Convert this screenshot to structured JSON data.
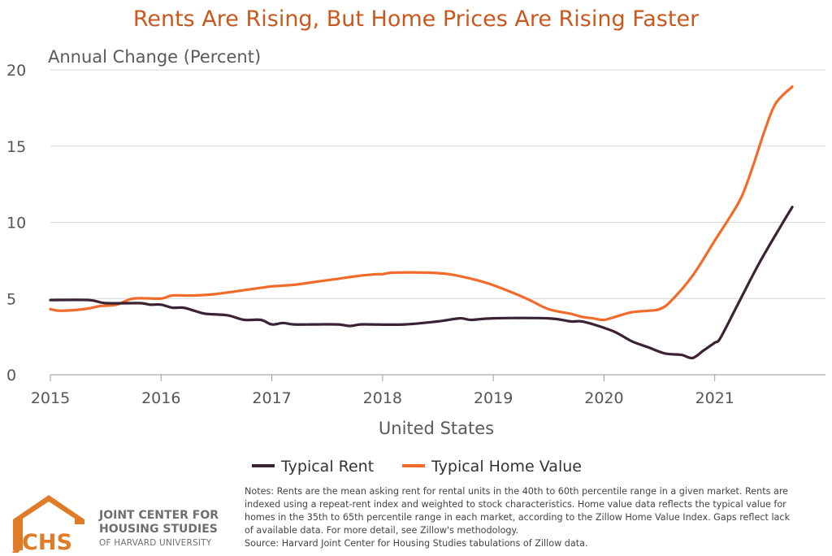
{
  "chart_data": {
    "type": "line",
    "title": "Rents Are Rising, But Home Prices Are Rising Faster",
    "ylabel": "Annual Change (Percent)",
    "xlabel": "United States",
    "ylim": [
      0,
      20
    ],
    "yticks": [
      "0",
      "5",
      "10",
      "15",
      "20"
    ],
    "xlim": [
      2015,
      2022
    ],
    "xticks": [
      "2015",
      "2016",
      "2017",
      "2018",
      "2019",
      "2020",
      "2021"
    ],
    "legend_position": "bottom",
    "series": [
      {
        "name": "Typical Rent",
        "color": "#3b2335",
        "x": [
          2015.0,
          2015.35,
          2015.5,
          2015.8,
          2015.9,
          2016.0,
          2016.1,
          2016.2,
          2016.3,
          2016.4,
          2016.6,
          2016.75,
          2016.9,
          2017.0,
          2017.1,
          2017.2,
          2017.4,
          2017.6,
          2017.7,
          2017.8,
          2017.9,
          2018.2,
          2018.5,
          2018.7,
          2018.8,
          2019.0,
          2019.5,
          2019.7,
          2019.8,
          2019.95,
          2020.1,
          2020.25,
          2020.4,
          2020.55,
          2020.7,
          2020.8,
          2020.9,
          2021.0,
          2021.05,
          2021.2,
          2021.4,
          2021.6,
          2021.7
        ],
        "values": [
          4.9,
          4.9,
          4.7,
          4.7,
          4.6,
          4.6,
          4.4,
          4.4,
          4.2,
          4.0,
          3.9,
          3.6,
          3.6,
          3.3,
          3.4,
          3.3,
          3.3,
          3.3,
          3.2,
          3.3,
          3.3,
          3.3,
          3.5,
          3.7,
          3.6,
          3.7,
          3.7,
          3.5,
          3.5,
          3.2,
          2.8,
          2.2,
          1.8,
          1.4,
          1.3,
          1.1,
          1.6,
          2.1,
          2.4,
          4.5,
          7.3,
          9.8,
          11.0
        ]
      },
      {
        "name": "Typical Home Value",
        "color": "#f26b2a",
        "x": [
          2015.0,
          2015.1,
          2015.3,
          2015.45,
          2015.6,
          2015.75,
          2016.0,
          2016.1,
          2016.3,
          2016.5,
          2016.7,
          2016.9,
          2017.0,
          2017.2,
          2017.4,
          2017.6,
          2017.8,
          2017.95,
          2018.0,
          2018.1,
          2018.4,
          2018.6,
          2018.8,
          2018.95,
          2019.1,
          2019.3,
          2019.5,
          2019.7,
          2019.8,
          2019.9,
          2020.0,
          2020.1,
          2020.25,
          2020.4,
          2020.5,
          2020.6,
          2020.8,
          2021.0,
          2021.15,
          2021.25,
          2021.35,
          2021.45,
          2021.55,
          2021.7
        ],
        "values": [
          4.3,
          4.2,
          4.3,
          4.5,
          4.6,
          5.0,
          5.0,
          5.2,
          5.2,
          5.3,
          5.5,
          5.7,
          5.8,
          5.9,
          6.1,
          6.3,
          6.5,
          6.6,
          6.6,
          6.7,
          6.7,
          6.6,
          6.3,
          6.0,
          5.6,
          5.0,
          4.3,
          4.0,
          3.8,
          3.7,
          3.6,
          3.8,
          4.1,
          4.2,
          4.3,
          4.8,
          6.5,
          8.8,
          10.5,
          11.8,
          13.8,
          16.0,
          17.8,
          18.9
        ]
      }
    ]
  },
  "notes": [
    "Notes: Rents are the mean asking rent for rental units in the 40th to 60th percentile range in a given market. Rents are",
    "indexed using a repeat-rent index and weighted to stock characteristics. Home value data reflects the typical value for",
    "homes in the 35th to 65th percentile range in each market, according to the Zillow Home Value Index. Gaps reflect lack",
    "of available data. For more detail, see Zillow's methodology.",
    "Source: Harvard Joint Center for Housing Studies tabulations of Zillow data."
  ],
  "logo": {
    "mark": "JCHS",
    "line1": "JOINT CENTER FOR",
    "line2": "HOUSING STUDIES",
    "line3": "OF HARVARD UNIVERSITY",
    "color": "#e07b28"
  }
}
